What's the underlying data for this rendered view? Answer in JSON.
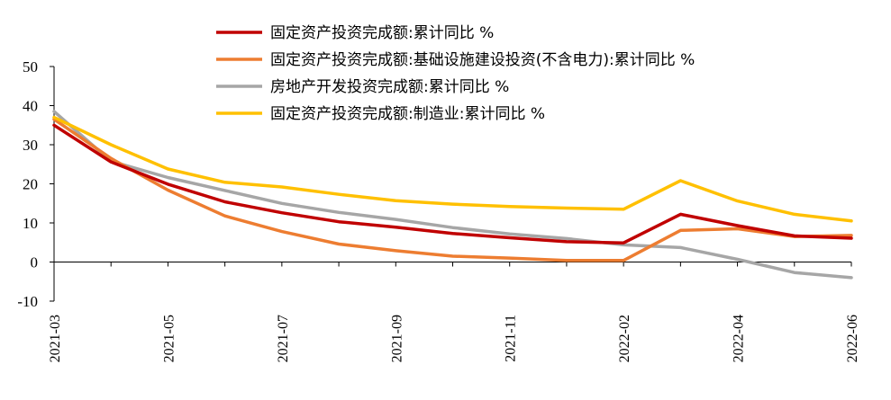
{
  "chart_data": {
    "type": "line",
    "title": "",
    "xlabel": "",
    "ylabel": "",
    "ylim": [
      -10,
      50
    ],
    "yticks": [
      -10,
      0,
      10,
      20,
      30,
      40,
      50
    ],
    "grid": false,
    "legend_position": "top",
    "x": [
      "2021-03",
      "2021-04",
      "2021-05",
      "2021-06",
      "2021-07",
      "2021-08",
      "2021-09",
      "2021-10",
      "2021-11",
      "2021-12",
      "2022-02",
      "2022-03",
      "2022-04",
      "2022-05",
      "2022-06"
    ],
    "x_tick_labels": [
      "2021-03",
      "2021-05",
      "2021-07",
      "2021-09",
      "2021-11",
      "2022-02",
      "2022-04",
      "2022-06"
    ],
    "series": [
      {
        "name": "固定资产投资完成额:累计同比 %",
        "color": "#c00000",
        "values": [
          35.0,
          25.6,
          19.9,
          15.4,
          12.6,
          10.3,
          8.9,
          7.3,
          6.2,
          5.2,
          4.9,
          12.2,
          9.3,
          6.7,
          6.1
        ]
      },
      {
        "name": "固定资产投资完成额:基础设施建设投资(不含电力):累计同比 %",
        "color": "#ed7d31",
        "values": [
          36.5,
          26.5,
          18.4,
          11.8,
          7.8,
          4.6,
          2.9,
          1.5,
          1.0,
          0.4,
          0.4,
          8.1,
          8.5,
          6.5,
          6.8
        ]
      },
      {
        "name": "房地产开发投资完成额:累计同比 %",
        "color": "#a6a6a6",
        "values": [
          38.5,
          25.8,
          21.6,
          18.3,
          15.0,
          12.7,
          10.9,
          8.8,
          7.2,
          6.0,
          4.4,
          3.7,
          0.7,
          -2.7,
          -4.0
        ]
      },
      {
        "name": "固定资产投资完成额:制造业:累计同比 %",
        "color": "#ffc000",
        "values": [
          37.0,
          30.0,
          23.8,
          20.4,
          19.2,
          17.3,
          15.7,
          14.8,
          14.2,
          13.8,
          13.5,
          20.8,
          15.6,
          12.2,
          10.5
        ]
      }
    ]
  }
}
